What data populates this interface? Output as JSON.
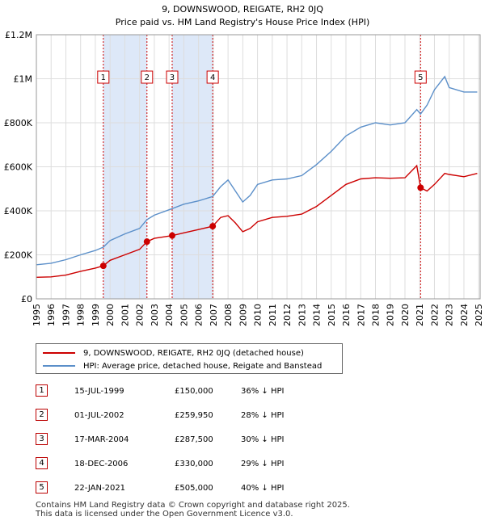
{
  "chart_data": {
    "type": "line",
    "title": "9, DOWNSWOOD, REIGATE, RH2 0JQ",
    "subtitle": "Price paid vs. HM Land Registry's House Price Index (HPI)",
    "xlim": [
      1995,
      2025.1
    ],
    "ylim": [
      0,
      1200000
    ],
    "yticks": [
      0,
      200000,
      400000,
      600000,
      800000,
      1000000,
      1200000
    ],
    "ytick_labels": [
      "£0",
      "£200K",
      "£400K",
      "£600K",
      "£800K",
      "£1M",
      "£1.2M"
    ],
    "xticks": [
      "1995",
      "1996",
      "1997",
      "1998",
      "1999",
      "2000",
      "2001",
      "2002",
      "2003",
      "2004",
      "2005",
      "2006",
      "2007",
      "2008",
      "2009",
      "2010",
      "2011",
      "2012",
      "2013",
      "2014",
      "2015",
      "2016",
      "2017",
      "2018",
      "2019",
      "2020",
      "2021",
      "2022",
      "2023",
      "2024",
      "2025"
    ],
    "grid": true,
    "colors": {
      "property": "#cc0000",
      "hpi": "#5b8fc9",
      "shade": "#dde8f8",
      "marker": "#cc0000"
    },
    "series": [
      {
        "name": "9, DOWNSWOOD, REIGATE, RH2 0JQ (detached house)",
        "points": [
          [
            1995.0,
            98000
          ],
          [
            1996.0,
            100000
          ],
          [
            1997.0,
            108000
          ],
          [
            1998.0,
            125000
          ],
          [
            1999.0,
            140000
          ],
          [
            1999.54,
            150000
          ],
          [
            2000.0,
            175000
          ],
          [
            2001.0,
            200000
          ],
          [
            2002.0,
            225000
          ],
          [
            2002.5,
            259950
          ],
          [
            2003.0,
            275000
          ],
          [
            2004.21,
            287500
          ],
          [
            2005.0,
            300000
          ],
          [
            2006.0,
            315000
          ],
          [
            2006.96,
            330000
          ],
          [
            2007.5,
            370000
          ],
          [
            2008.0,
            378000
          ],
          [
            2008.5,
            345000
          ],
          [
            2009.0,
            305000
          ],
          [
            2009.5,
            320000
          ],
          [
            2010.0,
            350000
          ],
          [
            2011.0,
            370000
          ],
          [
            2012.0,
            375000
          ],
          [
            2013.0,
            385000
          ],
          [
            2014.0,
            420000
          ],
          [
            2015.0,
            470000
          ],
          [
            2016.0,
            520000
          ],
          [
            2017.0,
            545000
          ],
          [
            2018.0,
            550000
          ],
          [
            2019.0,
            548000
          ],
          [
            2020.0,
            550000
          ],
          [
            2020.8,
            605000
          ],
          [
            2021.06,
            505000
          ],
          [
            2021.5,
            490000
          ],
          [
            2022.0,
            520000
          ],
          [
            2022.7,
            570000
          ],
          [
            2023.0,
            565000
          ],
          [
            2024.0,
            555000
          ],
          [
            2024.9,
            570000
          ]
        ]
      },
      {
        "name": "HPI: Average price, detached house, Reigate and Banstead",
        "points": [
          [
            1995.0,
            155000
          ],
          [
            1996.0,
            162000
          ],
          [
            1997.0,
            178000
          ],
          [
            1998.0,
            200000
          ],
          [
            1999.0,
            220000
          ],
          [
            1999.54,
            235000
          ],
          [
            2000.0,
            265000
          ],
          [
            2001.0,
            295000
          ],
          [
            2002.0,
            320000
          ],
          [
            2002.5,
            360000
          ],
          [
            2003.0,
            380000
          ],
          [
            2004.21,
            410000
          ],
          [
            2005.0,
            430000
          ],
          [
            2006.0,
            445000
          ],
          [
            2006.96,
            465000
          ],
          [
            2007.5,
            510000
          ],
          [
            2008.0,
            540000
          ],
          [
            2008.5,
            490000
          ],
          [
            2009.0,
            440000
          ],
          [
            2009.5,
            470000
          ],
          [
            2010.0,
            520000
          ],
          [
            2011.0,
            540000
          ],
          [
            2012.0,
            545000
          ],
          [
            2013.0,
            560000
          ],
          [
            2014.0,
            610000
          ],
          [
            2015.0,
            670000
          ],
          [
            2016.0,
            740000
          ],
          [
            2017.0,
            780000
          ],
          [
            2018.0,
            800000
          ],
          [
            2019.0,
            790000
          ],
          [
            2020.0,
            800000
          ],
          [
            2020.8,
            860000
          ],
          [
            2021.06,
            840000
          ],
          [
            2021.5,
            880000
          ],
          [
            2022.0,
            950000
          ],
          [
            2022.7,
            1010000
          ],
          [
            2023.0,
            960000
          ],
          [
            2024.0,
            940000
          ],
          [
            2024.9,
            940000
          ]
        ]
      }
    ],
    "sales": [
      {
        "num": "1",
        "x": 1999.54,
        "price": 150000
      },
      {
        "num": "2",
        "x": 2002.5,
        "price": 259950
      },
      {
        "num": "3",
        "x": 2004.21,
        "price": 287500
      },
      {
        "num": "4",
        "x": 2006.96,
        "price": 330000
      },
      {
        "num": "5",
        "x": 2021.06,
        "price": 505000
      }
    ],
    "shaded_ranges": [
      [
        1999.54,
        2002.5
      ],
      [
        2004.21,
        2006.96
      ]
    ]
  },
  "legend": {
    "property": "9, DOWNSWOOD, REIGATE, RH2 0JQ (detached house)",
    "hpi": "HPI: Average price, detached house, Reigate and Banstead"
  },
  "sales_table": [
    {
      "num": "1",
      "date": "15-JUL-1999",
      "price": "£150,000",
      "hpi": "36% ↓ HPI"
    },
    {
      "num": "2",
      "date": "01-JUL-2002",
      "price": "£259,950",
      "hpi": "28% ↓ HPI"
    },
    {
      "num": "3",
      "date": "17-MAR-2004",
      "price": "£287,500",
      "hpi": "30% ↓ HPI"
    },
    {
      "num": "4",
      "date": "18-DEC-2006",
      "price": "£330,000",
      "hpi": "29% ↓ HPI"
    },
    {
      "num": "5",
      "date": "22-JAN-2021",
      "price": "£505,000",
      "hpi": "40% ↓ HPI"
    }
  ],
  "footer": {
    "line1": "Contains HM Land Registry data © Crown copyright and database right 2025.",
    "line2": "This data is licensed under the Open Government Licence v3.0."
  }
}
